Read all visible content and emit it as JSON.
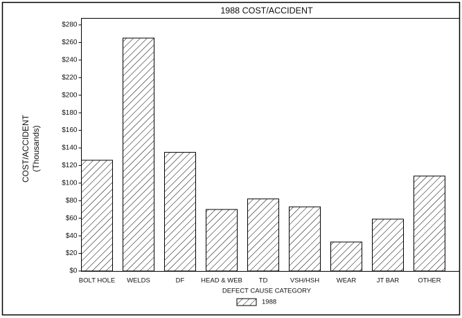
{
  "chart_data": {
    "type": "bar",
    "title": "1988 COST/ACCIDENT",
    "ylabel": [
      "COST/ACCIDENT",
      "(Thousands)"
    ],
    "xlabel": "DEFECT CAUSE CATEGORY",
    "categories": [
      "BOLT HOLE",
      "WELDS",
      "DF",
      "HEAD & WEB",
      "TD",
      "VSH/HSH",
      "WEAR",
      "JT BAR",
      "OTHER"
    ],
    "series": [
      {
        "name": "1988",
        "color": "#000000",
        "values": [
          126,
          265,
          135,
          70,
          82,
          73,
          33,
          59,
          108
        ]
      }
    ],
    "ylim": [
      0,
      280
    ],
    "yticks": [
      {
        "value": 0,
        "label": "$0"
      },
      {
        "value": 20,
        "label": "$20"
      },
      {
        "value": 40,
        "label": "$40"
      },
      {
        "value": 60,
        "label": "$60"
      },
      {
        "value": 80,
        "label": "$80"
      },
      {
        "value": 100,
        "label": "$100"
      },
      {
        "value": 120,
        "label": "$120"
      },
      {
        "value": 140,
        "label": "$140"
      },
      {
        "value": 160,
        "label": "$160"
      },
      {
        "value": 180,
        "label": "$180"
      },
      {
        "value": 200,
        "label": "$200"
      },
      {
        "value": 220,
        "label": "$220"
      },
      {
        "value": 240,
        "label": "$240"
      },
      {
        "value": 260,
        "label": "$260"
      },
      {
        "value": 280,
        "label": "$280"
      }
    ],
    "grid": false,
    "legend": "bottom"
  }
}
